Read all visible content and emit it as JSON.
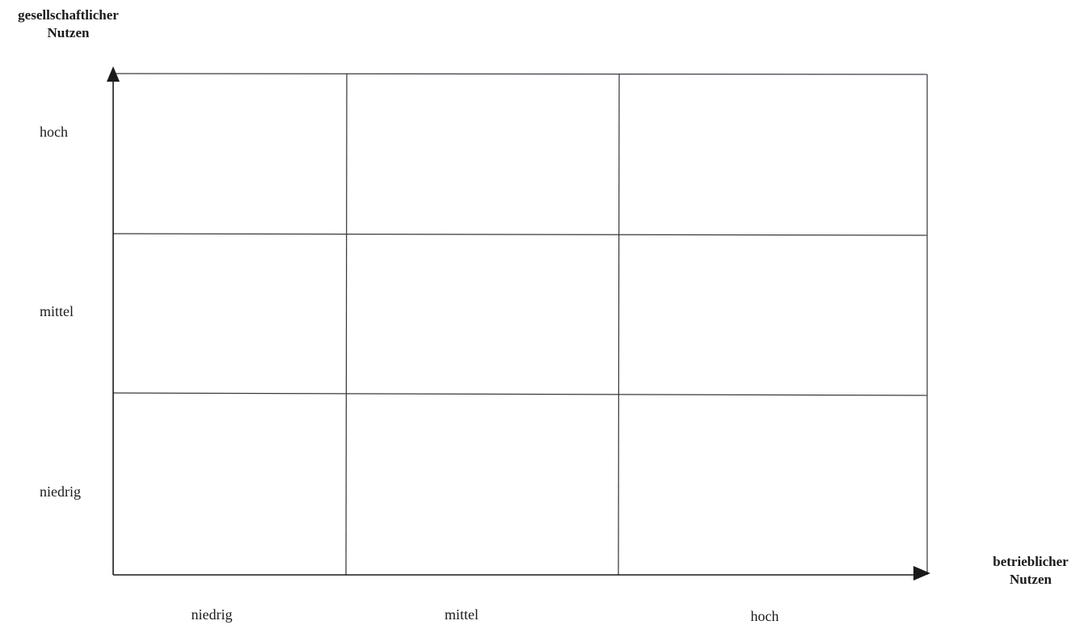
{
  "y_axis": {
    "title_line1": "gesellschaftlicher",
    "title_line2": "Nutzen",
    "levels": [
      "hoch",
      "mittel",
      "niedrig"
    ]
  },
  "x_axis": {
    "title_line1": "betrieblicher",
    "title_line2": "Nutzen",
    "levels": [
      "niedrig",
      "mittel",
      "hoch"
    ]
  },
  "colors": {
    "ink": "#1a1a1a",
    "grid_line": "#333333"
  }
}
